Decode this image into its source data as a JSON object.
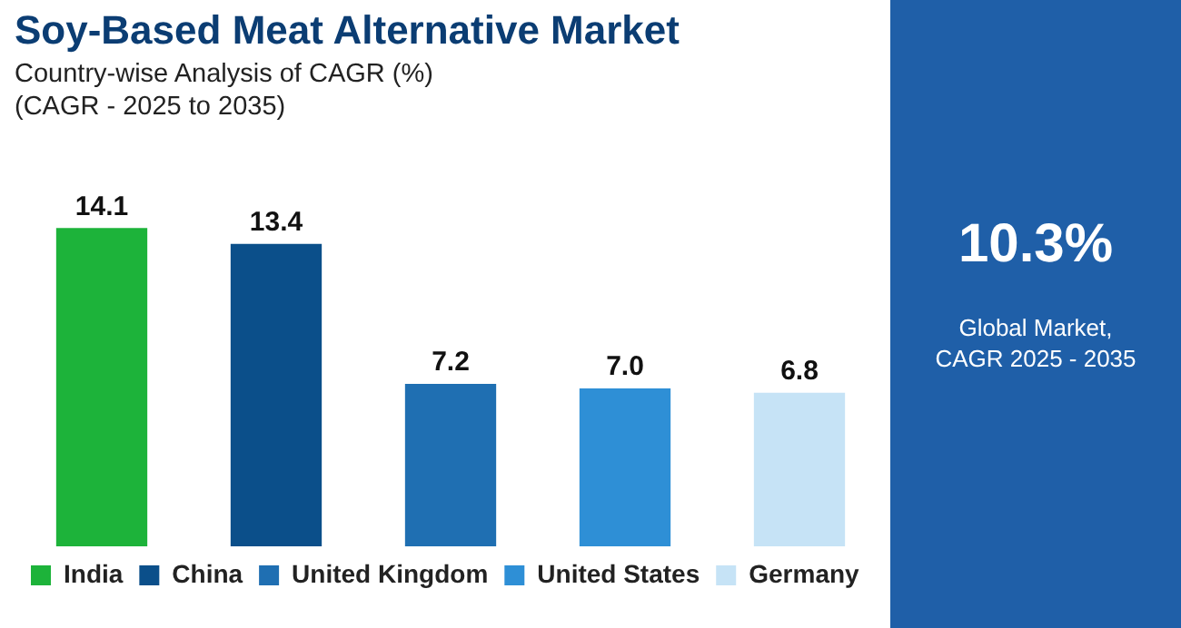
{
  "chart_data": {
    "type": "bar",
    "title": "Soy-Based Meat Alternative Market",
    "subtitle": "Country-wise Analysis of CAGR (%)\n(CAGR - 2025 to 2035)",
    "annotations": [
      "10.3%",
      "Global Market,\nCAGR 2025 - 2035"
    ],
    "categories": [
      null,
      null,
      null,
      null,
      null
    ],
    "stacked": true,
    "series": [
      {
        "name": "India",
        "color": "#1db33a",
        "values": [
          14.1,
          null,
          null,
          null,
          null
        ],
        "value_labels": [
          "14.1",
          null,
          null,
          null,
          null
        ]
      },
      {
        "name": "China",
        "color": "#0b4f8a",
        "values": [
          null,
          13.4,
          null,
          null,
          null
        ],
        "value_labels": [
          null,
          "13.4",
          null,
          null,
          null
        ]
      },
      {
        "name": "United Kingdom",
        "color": "#1f6fb2",
        "values": [
          null,
          null,
          7.2,
          null,
          null
        ],
        "value_labels": [
          null,
          null,
          "7.2",
          null,
          null
        ]
      },
      {
        "name": "United States",
        "color": "#2e8fd6",
        "values": [
          null,
          null,
          null,
          7.0,
          null
        ],
        "value_labels": [
          null,
          null,
          null,
          "7.0",
          null
        ]
      },
      {
        "name": "Germany",
        "color": "#c6e3f6",
        "values": [
          null,
          null,
          null,
          null,
          6.8
        ],
        "value_labels": [
          null,
          null,
          null,
          null,
          "6.8"
        ]
      }
    ],
    "tick_labels": false,
    "legend": "bottom"
  }
}
